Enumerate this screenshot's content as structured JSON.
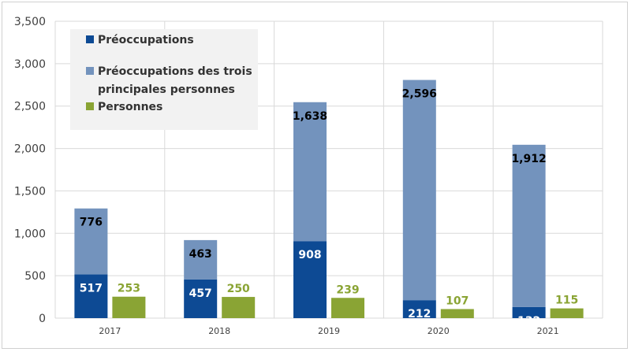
{
  "chart_data": {
    "type": "bar",
    "stacked_series_with_side_bar": true,
    "categories": [
      "2017",
      "2018",
      "2019",
      "2020",
      "2021"
    ],
    "series": [
      {
        "name": "Préoccupations",
        "color": "#0d4a94",
        "stack": "a",
        "values": [
          517,
          457,
          908,
          212,
          132
        ]
      },
      {
        "name": "Préoccupations des trois principales personnes",
        "color": "#7393bd",
        "stack": "a",
        "values": [
          776,
          463,
          1638,
          2596,
          1912
        ]
      },
      {
        "name": "Personnes",
        "color": "#8aa434",
        "stack": "b",
        "values": [
          253,
          250,
          239,
          107,
          115
        ]
      }
    ],
    "data_labels": {
      "Préoccupations": [
        "517",
        "457",
        "908",
        "212",
        "132"
      ],
      "Préoccupations des trois principales personnes": [
        "776",
        "463",
        "1,638",
        "2,596",
        "1,912"
      ],
      "Personnes": [
        "253",
        "250",
        "239",
        "107",
        "115"
      ]
    },
    "y_ticks": [
      "0",
      "500",
      "1,000",
      "1,500",
      "2,000",
      "2,500",
      "3,000",
      "3,500"
    ],
    "ylim": [
      0,
      3500
    ],
    "grid": true,
    "legend": {
      "placement": "top-left",
      "lines": [
        [
          "Préoccupations"
        ],
        [
          "Préoccupations des trois",
          "principales personnes"
        ],
        [
          "Personnes"
        ]
      ]
    },
    "label_colors": {
      "on_dark": "#ffffff",
      "on_light": "#000000",
      "green": "#8aa434"
    }
  }
}
